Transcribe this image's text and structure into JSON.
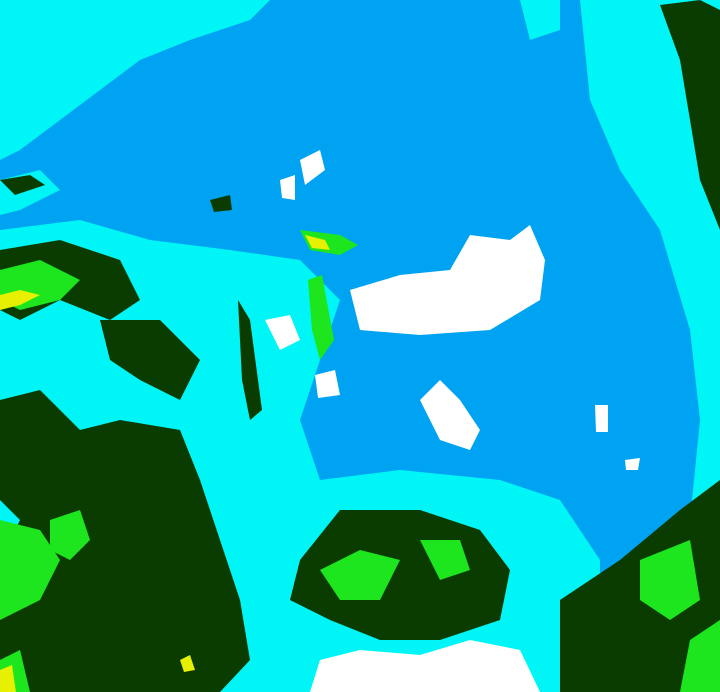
{
  "map": {
    "type": "classified raster",
    "colors": {
      "base": "#00a2f2",
      "cyan": "#00f6f6",
      "dark_green": "#0a3c00",
      "green": "#1ee61e",
      "yellow": "#e6f000",
      "white": "#ffffff"
    }
  }
}
